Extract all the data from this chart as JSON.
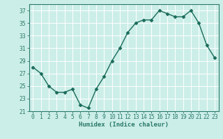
{
  "x": [
    0,
    1,
    2,
    3,
    4,
    5,
    6,
    7,
    8,
    9,
    10,
    11,
    12,
    13,
    14,
    15,
    16,
    17,
    18,
    19,
    20,
    21,
    22,
    23
  ],
  "y": [
    28,
    27,
    25,
    24,
    24,
    24.5,
    22,
    21.5,
    24.5,
    26.5,
    29,
    31,
    33.5,
    35,
    35.5,
    35.5,
    37,
    36.5,
    36,
    36,
    37,
    35,
    31.5,
    29.5
  ],
  "line_color": "#1a6b5a",
  "marker": "D",
  "marker_size": 2.5,
  "bg_color": "#cceee8",
  "grid_color": "#ffffff",
  "grid_minor_color": "#e8f8f5",
  "xlabel": "Humidex (Indice chaleur)",
  "ylim": [
    21,
    38
  ],
  "yticks": [
    21,
    23,
    25,
    27,
    29,
    31,
    33,
    35,
    37
  ],
  "xticks": [
    0,
    1,
    2,
    3,
    4,
    5,
    6,
    7,
    8,
    9,
    10,
    11,
    12,
    13,
    14,
    15,
    16,
    17,
    18,
    19,
    20,
    21,
    22,
    23
  ],
  "xlim": [
    -0.5,
    23.5
  ],
  "axis_color": "#2a7a6a",
  "tick_color": "#2a7a6a",
  "font_size_label": 6.5,
  "font_size_tick": 5.8,
  "linewidth": 1.0
}
